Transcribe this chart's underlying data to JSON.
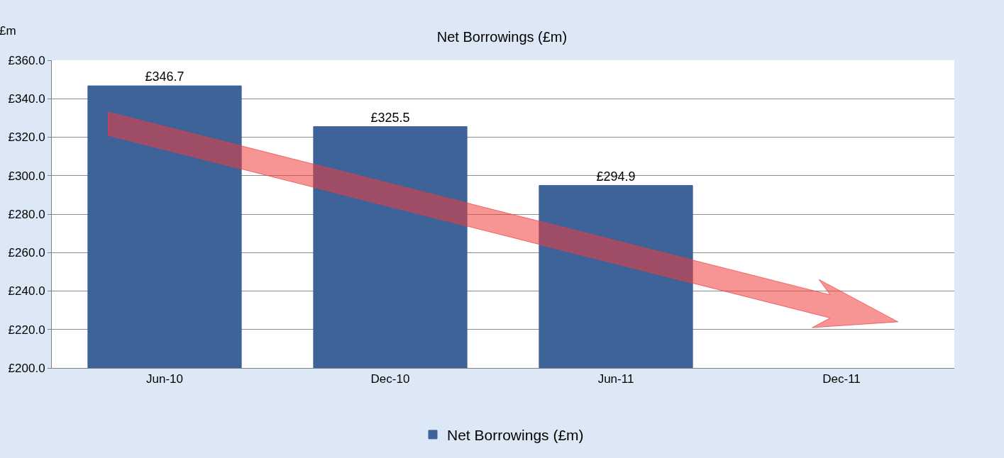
{
  "chart_data": {
    "type": "bar",
    "title": "Net Borrowings (£m)",
    "ylabel": "£m",
    "categories": [
      "Jun-10",
      "Dec-10",
      "Jun-11",
      "Dec-11"
    ],
    "series": [
      {
        "name": "Net Borrowings (£m)",
        "color": "#3d6399",
        "values": [
          346.7,
          325.5,
          294.9,
          null
        ],
        "value_labels": [
          "£346.7",
          "£325.5",
          "£294.9",
          null
        ]
      }
    ],
    "ylim": [
      200,
      360
    ],
    "yticks": [
      {
        "value": 200,
        "label": "£200.0"
      },
      {
        "value": 220,
        "label": "£220.0"
      },
      {
        "value": 240,
        "label": "£240.0"
      },
      {
        "value": 260,
        "label": "£260.0"
      },
      {
        "value": 280,
        "label": "£280.0"
      },
      {
        "value": 300,
        "label": "£300.0"
      },
      {
        "value": 320,
        "label": "£320.0"
      },
      {
        "value": 340,
        "label": "£340.0"
      },
      {
        "value": 360,
        "label": "£360.0"
      }
    ],
    "grid": "y",
    "legend": "bottom"
  }
}
